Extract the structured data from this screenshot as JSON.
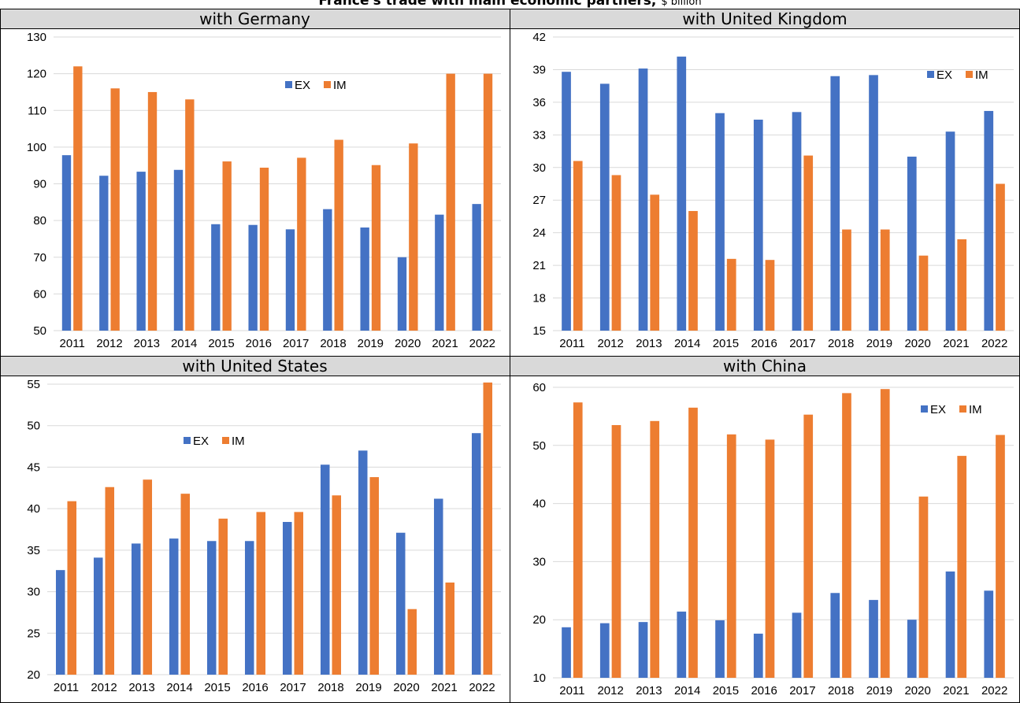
{
  "page": {
    "title": "France's trade with main economic partners,",
    "unit": "$ billion"
  },
  "colors": {
    "ex": "#4472c4",
    "im": "#ed7d31",
    "header_bg": "#d9d9d9",
    "gridline": "#d9d9d9"
  },
  "chart_data": [
    {
      "type": "bar",
      "title": "with Germany",
      "categories": [
        "2011",
        "2012",
        "2013",
        "2014",
        "2015",
        "2016",
        "2017",
        "2018",
        "2019",
        "2020",
        "2021",
        "2022"
      ],
      "series": [
        {
          "name": "EX",
          "values": [
            97.8,
            92.2,
            93.3,
            93.8,
            79.0,
            78.8,
            77.6,
            83.1,
            78.1,
            70.0,
            81.6,
            84.5
          ]
        },
        {
          "name": "IM",
          "values": [
            122.0,
            116.0,
            115.0,
            113.0,
            96.1,
            94.4,
            97.1,
            102.0,
            95.1,
            101.0,
            120.0,
            120.0
          ]
        }
      ],
      "ylim": [
        50,
        130
      ],
      "yticks": [
        50,
        60,
        70,
        80,
        90,
        100,
        110,
        120,
        130
      ],
      "legend": [
        "EX",
        "IM"
      ],
      "legend_placement": "top-center",
      "grid": true
    },
    {
      "type": "bar",
      "title": "with United Kingdom",
      "categories": [
        "2011",
        "2012",
        "2013",
        "2014",
        "2015",
        "2016",
        "2017",
        "2018",
        "2019",
        "2020",
        "2021",
        "2022"
      ],
      "series": [
        {
          "name": "EX",
          "values": [
            38.8,
            37.7,
            39.1,
            40.2,
            35.0,
            34.4,
            35.1,
            38.4,
            38.5,
            31.0,
            33.3,
            35.2
          ]
        },
        {
          "name": "IM",
          "values": [
            30.6,
            29.3,
            27.5,
            26.0,
            21.6,
            21.5,
            31.1,
            24.3,
            24.3,
            21.9,
            23.4,
            28.5
          ]
        }
      ],
      "ylim": [
        15,
        42
      ],
      "yticks": [
        15,
        18,
        21,
        24,
        27,
        30,
        33,
        36,
        39,
        42
      ],
      "legend": [
        "EX",
        "IM"
      ],
      "legend_placement": "top-right",
      "grid": true
    },
    {
      "type": "bar",
      "title": "with United States",
      "categories": [
        "2011",
        "2012",
        "2013",
        "2014",
        "2015",
        "2016",
        "2017",
        "2018",
        "2019",
        "2020",
        "2021",
        "2022"
      ],
      "series": [
        {
          "name": "EX",
          "values": [
            32.6,
            34.1,
            35.8,
            36.4,
            36.1,
            36.1,
            38.4,
            45.3,
            47.0,
            37.1,
            41.2,
            49.1
          ]
        },
        {
          "name": "IM",
          "values": [
            40.9,
            42.6,
            43.5,
            41.8,
            38.8,
            39.6,
            39.6,
            41.6,
            43.8,
            27.9,
            31.1,
            55.2
          ]
        }
      ],
      "ylim": [
        20,
        55
      ],
      "yticks": [
        20,
        25,
        30,
        35,
        40,
        45,
        50,
        55
      ],
      "legend": [
        "EX",
        "IM"
      ],
      "legend_placement": "top-center",
      "grid": true
    },
    {
      "type": "bar",
      "title": "with China",
      "categories": [
        "2011",
        "2012",
        "2013",
        "2014",
        "2015",
        "2016",
        "2017",
        "2018",
        "2019",
        "2020",
        "2021",
        "2022"
      ],
      "series": [
        {
          "name": "EX",
          "values": [
            18.7,
            19.4,
            19.6,
            21.4,
            19.9,
            17.6,
            21.2,
            24.6,
            23.4,
            20.0,
            28.3,
            25.0
          ]
        },
        {
          "name": "IM",
          "values": [
            57.4,
            53.5,
            54.2,
            56.5,
            51.9,
            51.0,
            55.3,
            59.0,
            59.7,
            41.2,
            48.2,
            51.8
          ]
        }
      ],
      "ylim": [
        10,
        60
      ],
      "yticks": [
        10,
        20,
        30,
        40,
        50,
        60
      ],
      "legend": [
        "EX",
        "IM"
      ],
      "legend_placement": "top-right",
      "grid": true
    }
  ]
}
